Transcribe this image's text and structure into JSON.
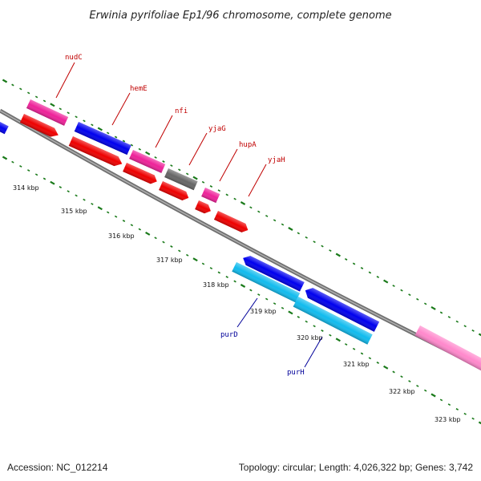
{
  "title": "Erwinia pyrifoliae Ep1/96 chromosome, complete genome",
  "footer": {
    "accession": "Accession: NC_012214",
    "summary": "Topology: circular; Length: 4,026,322 bp; Genes: 3,742"
  },
  "colors": {
    "backbone": "#808080",
    "tick": "#1a7a1a",
    "label_upper": "#c00000",
    "label_lower": "#000099"
  },
  "kbp_labels": [
    "314 kbp",
    "315 kbp",
    "316 kbp",
    "317 kbp",
    "318 kbp",
    "319 kbp",
    "320 kbp",
    "321 kbp",
    "322 kbp",
    "323 kbp"
  ],
  "gene_labels": [
    {
      "id": "nudC",
      "text": "nudC",
      "group": "upper"
    },
    {
      "id": "hemE",
      "text": "hemE",
      "group": "upper"
    },
    {
      "id": "nfi",
      "text": "nfi",
      "group": "upper"
    },
    {
      "id": "yjaG",
      "text": "yjaG",
      "group": "upper"
    },
    {
      "id": "hupA",
      "text": "hupA",
      "group": "upper"
    },
    {
      "id": "yjaH",
      "text": "yjaH",
      "group": "upper"
    },
    {
      "id": "purD",
      "text": "purD",
      "group": "lower"
    },
    {
      "id": "purH",
      "text": "purH",
      "group": "lower"
    }
  ],
  "features": [
    {
      "id": "f-blue-left",
      "color": "#0000ee"
    },
    {
      "id": "f-orange-left",
      "color": "#ff9900"
    },
    {
      "id": "f-nudC-pink",
      "color": "#ee2299"
    },
    {
      "id": "f-nudC-red",
      "color": "#ee0000"
    },
    {
      "id": "f-hemE-blue",
      "color": "#0000ee"
    },
    {
      "id": "f-hemE-red",
      "color": "#ee0000"
    },
    {
      "id": "f-nfi-pink",
      "color": "#ee2299"
    },
    {
      "id": "f-nfi-red",
      "color": "#ee0000"
    },
    {
      "id": "f-yjaG-grey",
      "color": "#666666"
    },
    {
      "id": "f-yjaG-red",
      "color": "#ee0000"
    },
    {
      "id": "f-hupA-pink",
      "color": "#ee2299"
    },
    {
      "id": "f-hupA-red",
      "color": "#ee0000"
    },
    {
      "id": "f-yjaH-red",
      "color": "#ee0000"
    },
    {
      "id": "f-purD-blue",
      "color": "#0000ee"
    },
    {
      "id": "f-purD-cyan",
      "color": "#11bbee"
    },
    {
      "id": "f-purH-blue",
      "color": "#0000ee"
    },
    {
      "id": "f-purH-cyan",
      "color": "#11bbee"
    },
    {
      "id": "f-pink-right",
      "color": "#ff88cc"
    }
  ]
}
